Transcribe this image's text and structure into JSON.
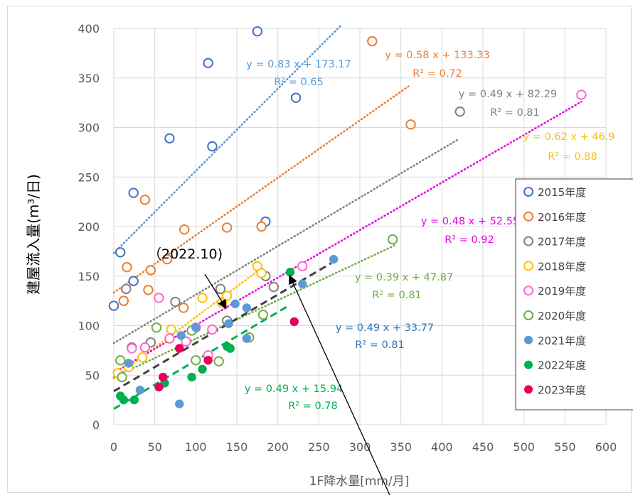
{
  "chart_data": {
    "type": "scatter",
    "title": "",
    "xlabel": "1F降水量[mm/月]",
    "ylabel": "建屋流入量(m³/日)",
    "xlim": [
      0,
      600
    ],
    "ylim": [
      0,
      400
    ],
    "x_ticks": [
      "0",
      "50",
      "100",
      "150",
      "200",
      "250",
      "300",
      "350",
      "400",
      "450",
      "500",
      "550",
      "600"
    ],
    "y_ticks": [
      "0",
      "50",
      "100",
      "150",
      "200",
      "250",
      "300",
      "350",
      "400"
    ],
    "grid": true,
    "legend_position": "right",
    "series": [
      {
        "name": "2015年度",
        "color": "#4472c4",
        "filled": false,
        "trend_color": "#5b9bd5",
        "trend_dash": "1,4",
        "points": [
          [
            8,
            174
          ],
          [
            0,
            120
          ],
          [
            24,
            145
          ],
          [
            24,
            234
          ],
          [
            68,
            289
          ],
          [
            115,
            365
          ],
          [
            120,
            281
          ],
          [
            175,
            397
          ],
          [
            185,
            205
          ],
          [
            222,
            330
          ]
        ],
        "trend": [
          [
            0,
            173.17
          ],
          [
            278,
            403.9
          ]
        ],
        "equation": "y = 0.83 x + 173.17",
        "r2": "R² = 0.65"
      },
      {
        "name": "2016年度",
        "color": "#ed7d31",
        "filled": false,
        "trend_color": "#ed7d31",
        "trend_dash": "1,4",
        "points": [
          [
            12,
            125
          ],
          [
            16,
            159
          ],
          [
            38,
            227
          ],
          [
            42,
            136
          ],
          [
            45,
            156
          ],
          [
            65,
            167
          ],
          [
            85,
            118
          ],
          [
            86,
            197
          ],
          [
            138,
            199
          ],
          [
            180,
            200
          ],
          [
            315,
            387
          ],
          [
            362,
            303
          ]
        ],
        "trend": [
          [
            0,
            133.33
          ],
          [
            360,
            342
          ]
        ],
        "equation": "y = 0.58 x + 133.33",
        "r2": "R² = 0.72"
      },
      {
        "name": "2017年度",
        "color": "#808080",
        "filled": false,
        "trend_color": "#808080",
        "trend_dash": "1,4",
        "points": [
          [
            15,
            137
          ],
          [
            22,
            78
          ],
          [
            45,
            83
          ],
          [
            75,
            124
          ],
          [
            130,
            137
          ],
          [
            138,
            105
          ],
          [
            185,
            150
          ],
          [
            195,
            139
          ],
          [
            422,
            316
          ]
        ],
        "trend": [
          [
            0,
            82.29
          ],
          [
            420,
            288
          ]
        ],
        "equation": "y = 0.49 x + 82.29",
        "r2": "R² = 0.81"
      },
      {
        "name": "2018年度",
        "color": "#ffc000",
        "filled": false,
        "trend_color": "#ffc000",
        "trend_dash": "1,4",
        "points": [
          [
            5,
            52
          ],
          [
            18,
            58
          ],
          [
            35,
            68
          ],
          [
            70,
            96
          ],
          [
            108,
            128
          ],
          [
            132,
            123
          ],
          [
            138,
            130
          ],
          [
            175,
            160
          ],
          [
            180,
            153
          ]
        ],
        "trend": [
          [
            0,
            46.9
          ],
          [
            180,
            158
          ]
        ],
        "equation": "y = 0.62 x + 46.9",
        "r2": "R² = 0.88"
      },
      {
        "name": "2019年度",
        "color": "#ff66cc",
        "filled": false,
        "trend_color": "#e600e6",
        "trend_dash": "1,4",
        "points": [
          [
            22,
            77
          ],
          [
            38,
            78
          ],
          [
            55,
            128
          ],
          [
            68,
            87
          ],
          [
            88,
            84
          ],
          [
            100,
            98
          ],
          [
            115,
            70
          ],
          [
            120,
            96
          ],
          [
            230,
            160
          ],
          [
            570,
            333
          ]
        ],
        "trend": [
          [
            0,
            52.55
          ],
          [
            570,
            326
          ]
        ],
        "equation": "y = 0.48 x + 52.55",
        "r2": "R² = 0.92"
      },
      {
        "name": "2020年度",
        "color": "#70ad47",
        "filled": false,
        "trend_color": "#70ad47",
        "trend_dash": "1,4",
        "points": [
          [
            8,
            65
          ],
          [
            10,
            48
          ],
          [
            52,
            98
          ],
          [
            95,
            95
          ],
          [
            100,
            65
          ],
          [
            128,
            64
          ],
          [
            165,
            88
          ],
          [
            182,
            111
          ],
          [
            340,
            187
          ]
        ],
        "trend": [
          [
            0,
            47.87
          ],
          [
            345,
            182
          ]
        ],
        "equation": "y = 0.39 x + 47.87",
        "r2": "R² = 0.81"
      },
      {
        "name": "2021年度",
        "color": "#5b9bd5",
        "filled": true,
        "trend_color": "#404040",
        "trend_dash": "10,6",
        "points": [
          [
            18,
            62
          ],
          [
            32,
            35
          ],
          [
            80,
            21
          ],
          [
            82,
            90
          ],
          [
            100,
            98
          ],
          [
            140,
            102
          ],
          [
            148,
            122
          ],
          [
            162,
            118
          ],
          [
            162,
            87
          ],
          [
            230,
            142
          ],
          [
            268,
            167
          ]
        ],
        "trend": [
          [
            0,
            33.77
          ],
          [
            265,
            163
          ]
        ],
        "equation": "y = 0.49 x + 33.77",
        "r2": "R² = 0.81"
      },
      {
        "name": "2022年度",
        "color": "#00b050",
        "filled": true,
        "trend_color": "#00b050",
        "trend_dash": "10,6",
        "points": [
          [
            8,
            29
          ],
          [
            12,
            25
          ],
          [
            25,
            25
          ],
          [
            62,
            42
          ],
          [
            95,
            48
          ],
          [
            108,
            56
          ],
          [
            138,
            79
          ],
          [
            142,
            77
          ],
          [
            215,
            154
          ]
        ],
        "trend": [
          [
            0,
            15.94
          ],
          [
            215,
            121
          ]
        ],
        "equation": "y = 0.49 x + 15.94",
        "r2": "R² = 0.78"
      },
      {
        "name": "2023年度",
        "color": "#e6005c",
        "filled": true,
        "trend_color": null,
        "trend_dash": null,
        "points": [
          [
            55,
            38
          ],
          [
            60,
            48
          ],
          [
            80,
            77
          ],
          [
            115,
            65
          ],
          [
            220,
            104
          ]
        ],
        "trend": null,
        "equation": null,
        "r2": null
      }
    ],
    "annotation": {
      "text": "（2022.10)"
    }
  }
}
